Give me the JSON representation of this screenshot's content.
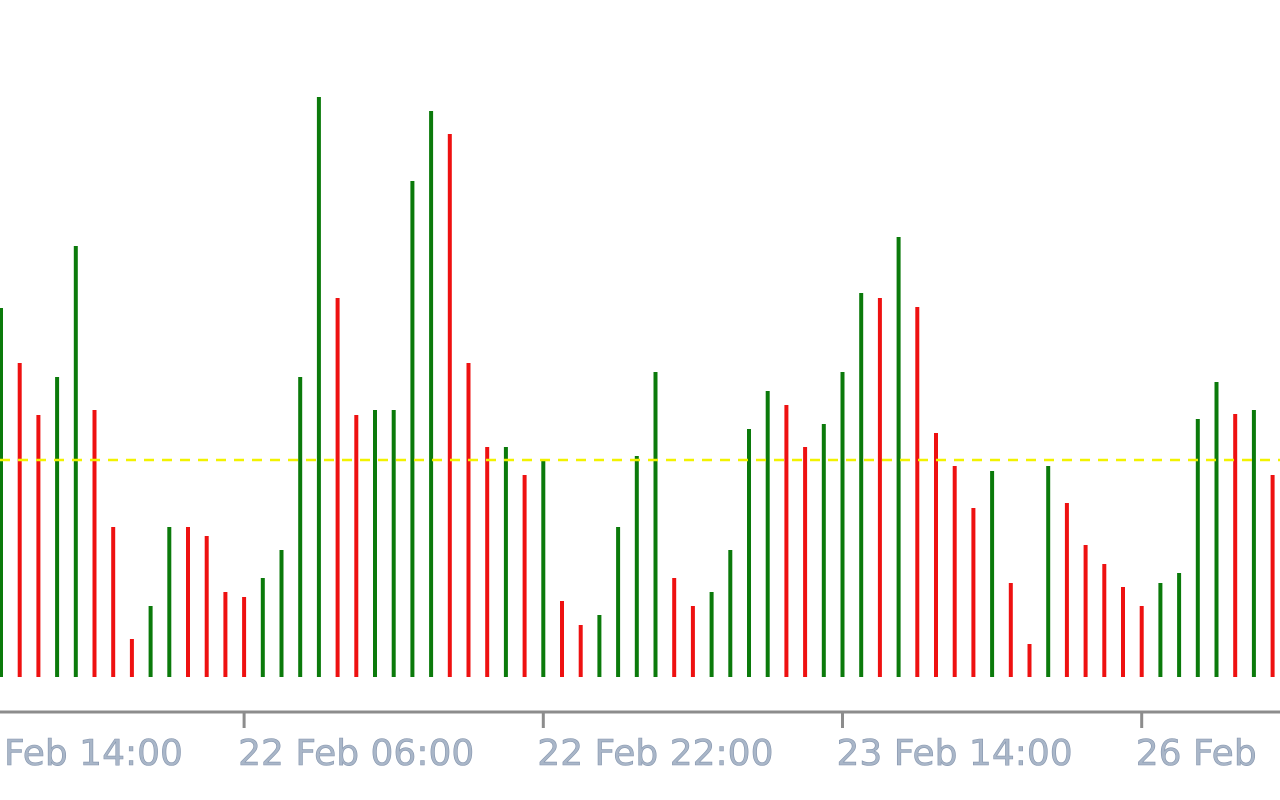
{
  "chart_data": {
    "type": "bar",
    "leading_label": "Feb 14:00",
    "categories": [
      null,
      null,
      null,
      null,
      null,
      null,
      null,
      null,
      null,
      null,
      null,
      null,
      null,
      "22 Feb 06:00",
      null,
      null,
      null,
      null,
      null,
      null,
      null,
      null,
      null,
      null,
      null,
      null,
      null,
      null,
      null,
      "22 Feb 22:00",
      null,
      null,
      null,
      null,
      null,
      null,
      null,
      null,
      null,
      null,
      null,
      null,
      null,
      null,
      null,
      "23 Feb 14:00",
      null,
      null,
      null,
      null,
      null,
      null,
      null,
      null,
      null,
      null,
      null,
      null,
      null,
      null,
      null,
      "26 Feb",
      null,
      null,
      null,
      null,
      null,
      null,
      null
    ],
    "values": [
      369,
      314,
      262,
      300,
      431,
      267,
      150,
      38,
      71,
      150,
      150,
      141,
      85,
      80,
      99,
      127,
      300,
      580,
      379,
      262,
      267,
      267,
      496,
      566,
      543,
      314,
      230,
      230,
      202,
      216,
      76,
      52,
      62,
      150,
      221,
      305,
      99,
      71,
      85,
      127,
      248,
      286,
      272,
      230,
      253,
      305,
      384,
      379,
      440,
      370,
      244,
      211,
      169,
      206,
      94,
      33,
      211,
      174,
      132,
      113,
      90,
      71,
      94,
      104,
      258,
      295,
      263,
      267,
      202
    ],
    "up": [
      true,
      false,
      false,
      true,
      true,
      false,
      false,
      false,
      true,
      true,
      false,
      false,
      false,
      false,
      true,
      true,
      true,
      true,
      false,
      false,
      true,
      true,
      true,
      true,
      false,
      false,
      false,
      true,
      false,
      true,
      false,
      false,
      true,
      true,
      true,
      true,
      false,
      false,
      true,
      true,
      true,
      true,
      false,
      false,
      true,
      true,
      true,
      false,
      true,
      false,
      false,
      false,
      false,
      true,
      false,
      false,
      true,
      false,
      false,
      false,
      false,
      false,
      true,
      true,
      true,
      true,
      false,
      true,
      false
    ],
    "up_color": "#0b7a0b",
    "down_color": "#ee1111",
    "ylim": [
      0,
      677
    ],
    "reference_line": 217,
    "reference_color": "#f2f200"
  }
}
